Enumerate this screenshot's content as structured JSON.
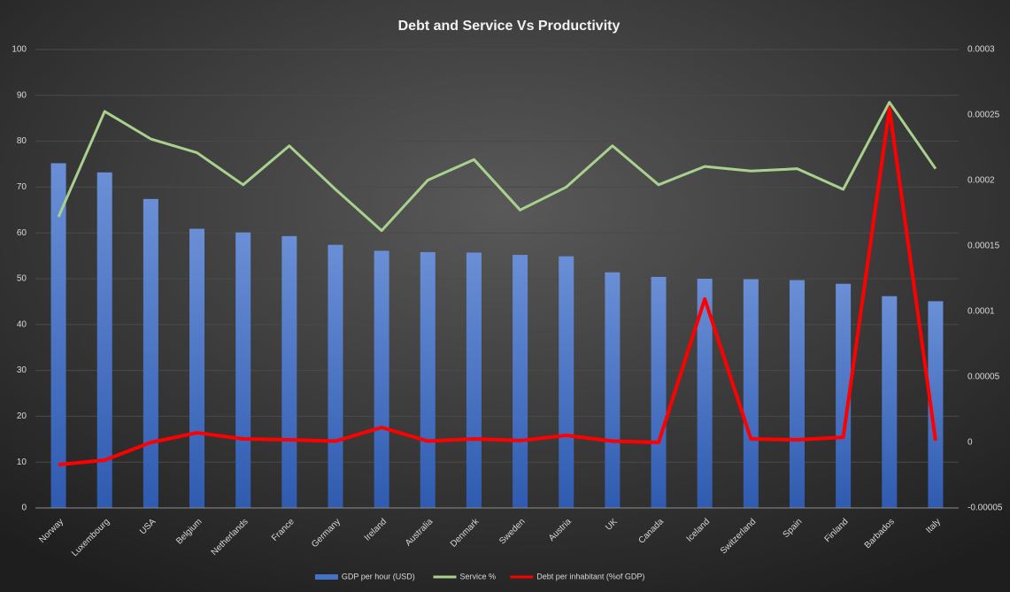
{
  "chart_data": {
    "type": "bar_line",
    "title": "Debt and Service Vs Productivity",
    "categories": [
      "Norway",
      "Luxembourg",
      "USA",
      "Belgium",
      "Netherlands",
      "France",
      "Germany",
      "Ireland",
      "Australia",
      "Denmark",
      "Sweden",
      "Austria",
      "UK",
      "Canada",
      "Iceland",
      "Switzerland",
      "Spain",
      "Finland",
      "Barbados",
      "Italy"
    ],
    "series": [
      {
        "name": "GDP per hour (USD)",
        "type": "bar",
        "color": "#4472c4",
        "values": [
          75.2,
          73.2,
          67.4,
          60.9,
          60.1,
          59.3,
          57.4,
          56.1,
          55.8,
          55.7,
          55.2,
          54.9,
          51.4,
          50.4,
          50.0,
          49.9,
          49.7,
          48.9,
          46.2,
          45.1
        ]
      },
      {
        "name": "Service %",
        "type": "line",
        "color": "#a9d18e",
        "values": [
          63.5,
          86.5,
          80.5,
          77.5,
          70.5,
          79,
          69.5,
          60.5,
          71.5,
          76,
          65,
          70,
          79,
          70.5,
          74.5,
          73.5,
          74,
          69.5,
          88.5,
          74
        ]
      },
      {
        "name": "Debt per inhabitant (%of GDP)",
        "type": "line",
        "color": "#ff0000",
        "axis": "y2",
        "values": [
          -1.7e-05,
          -1.35e-05,
          0,
          7.4e-06,
          2.7e-06,
          2e-06,
          1e-06,
          1.15e-05,
          1e-06,
          2.7e-06,
          1.4e-06,
          5.4e-06,
          1e-06,
          0,
          0.0001095,
          2.7e-06,
          2e-06,
          4e-06,
          0.000255,
          1.4e-06
        ]
      }
    ],
    "ylim": [
      0,
      100
    ],
    "yticks": [
      0,
      10,
      20,
      30,
      40,
      50,
      60,
      70,
      80,
      90,
      100
    ],
    "y2lim": [
      -5e-05,
      0.0003
    ],
    "y2ticks": [
      -5e-05,
      0,
      5e-05,
      0.0001,
      0.00015,
      0.0002,
      0.00025,
      0.0003
    ],
    "grid": true,
    "legend": "bottom"
  }
}
